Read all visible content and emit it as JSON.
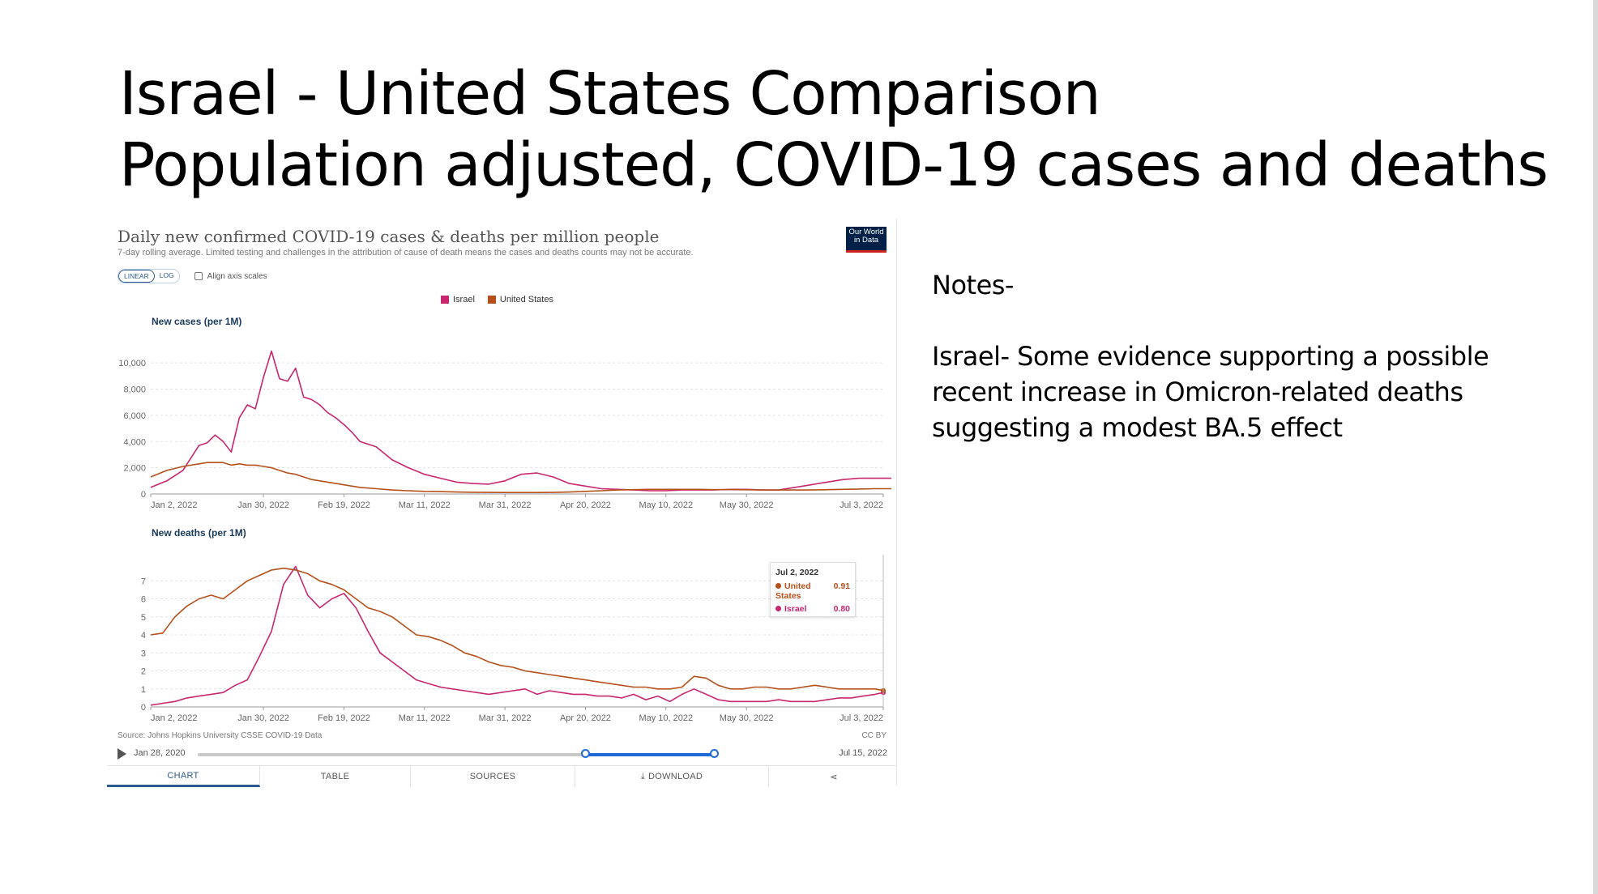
{
  "slide": {
    "title_line1": "Israel - United States Comparison",
    "title_line2": "Population adjusted, COVID-19 cases and deaths"
  },
  "notes": {
    "heading": "Notes-",
    "body": "Israel- Some evidence supporting a possible recent increase in Omicron-related deaths suggesting a modest BA.5 effect"
  },
  "owid": {
    "title": "Daily new confirmed COVID-19 cases & deaths per million people",
    "subtitle": "7-day rolling average. Limited testing and challenges in the attribution of cause of death means the cases and deaths counts may not be accurate.",
    "logo_line1": "Our World",
    "logo_line2": "in Data",
    "linear_label": "LINEAR",
    "log_label": "LOG",
    "align_label": "Align axis scales",
    "source": "Source: Johns Hopkins University CSSE COVID-19 Data",
    "license": "CC BY",
    "timeline_start": "Jan 28, 2020",
    "timeline_end": "Jul 15, 2022",
    "tabs": [
      "CHART",
      "TABLE",
      "SOURCES",
      "DOWNLOAD",
      "share"
    ],
    "tooltip": {
      "date": "Jul 2, 2022",
      "rows": [
        {
          "name": "United States",
          "value": "0.91"
        },
        {
          "name": "Israel",
          "value": "0.80"
        }
      ]
    },
    "colors": {
      "israel": "#c8266f",
      "united_states": "#b5501b",
      "accent": "#2c5a90"
    }
  },
  "chart_data": [
    {
      "type": "line",
      "title": "New cases (per 1M)",
      "xlabel": "",
      "ylabel": "New cases (per 1M)",
      "ylim": [
        0,
        11000
      ],
      "yticks": [
        0,
        2000,
        4000,
        6000,
        8000,
        10000
      ],
      "ytick_labels": [
        "0",
        "2,000",
        "4,000",
        "6,000",
        "8,000",
        "10,000"
      ],
      "x": [
        0,
        4,
        8,
        12,
        14,
        16,
        18,
        20,
        22,
        24,
        26,
        28,
        30,
        32,
        34,
        36,
        38,
        40,
        42,
        44,
        46,
        48,
        50,
        52,
        56,
        60,
        64,
        68,
        72,
        76,
        80,
        84,
        88,
        92,
        96,
        100,
        104,
        108,
        112,
        116,
        120,
        124,
        128,
        132,
        136,
        140,
        144,
        148,
        152,
        156,
        160,
        164,
        168,
        172,
        176,
        180,
        184
      ],
      "x_tick_labels": [
        "Jan 2, 2022",
        "Jan 30, 2022",
        "Feb 19, 2022",
        "Mar 11, 2022",
        "Mar 31, 2022",
        "Apr 20, 2022",
        "May 10, 2022",
        "May 30, 2022",
        "Jul 3, 2022"
      ],
      "x_tick_positions": [
        0,
        28,
        48,
        68,
        88,
        108,
        128,
        148,
        182
      ],
      "series": [
        {
          "name": "Israel",
          "values": [
            500,
            1000,
            1800,
            3700,
            3900,
            4500,
            4000,
            3200,
            5800,
            6800,
            6500,
            8900,
            10900,
            8800,
            8600,
            9600,
            7400,
            7200,
            6800,
            6200,
            5800,
            5300,
            4700,
            4000,
            3600,
            2600,
            2000,
            1500,
            1200,
            900,
            800,
            750,
            1000,
            1500,
            1600,
            1300,
            800,
            600,
            400,
            350,
            300,
            250,
            250,
            300,
            300,
            300,
            350,
            350,
            300,
            300,
            500,
            700,
            900,
            1100,
            1200,
            1200,
            1200
          ]
        },
        {
          "name": "United States",
          "values": [
            1300,
            1800,
            2100,
            2300,
            2400,
            2400,
            2400,
            2200,
            2300,
            2200,
            2200,
            2100,
            2000,
            1800,
            1600,
            1500,
            1300,
            1100,
            1000,
            900,
            800,
            700,
            600,
            500,
            400,
            300,
            250,
            200,
            180,
            150,
            130,
            120,
            110,
            110,
            110,
            120,
            150,
            200,
            250,
            300,
            330,
            350,
            350,
            350,
            350,
            330,
            330,
            320,
            300,
            300,
            300,
            300,
            330,
            350,
            380,
            400,
            400
          ]
        }
      ]
    },
    {
      "type": "line",
      "title": "New deaths (per 1M)",
      "xlabel": "",
      "ylabel": "New deaths (per 1M)",
      "ylim": [
        0,
        8
      ],
      "yticks": [
        0,
        1,
        2,
        3,
        4,
        5,
        6,
        7
      ],
      "ytick_labels": [
        "0",
        "1",
        "2",
        "3",
        "4",
        "5",
        "6",
        "7"
      ],
      "x": [
        0,
        3,
        6,
        9,
        12,
        15,
        18,
        21,
        24,
        27,
        30,
        33,
        36,
        39,
        42,
        45,
        48,
        51,
        54,
        57,
        60,
        63,
        66,
        69,
        72,
        75,
        78,
        81,
        84,
        87,
        90,
        93,
        96,
        99,
        102,
        105,
        108,
        111,
        114,
        117,
        120,
        123,
        126,
        129,
        132,
        135,
        138,
        141,
        144,
        147,
        150,
        153,
        156,
        159,
        162,
        165,
        168,
        171,
        174,
        177,
        180,
        182
      ],
      "x_tick_labels": [
        "Jan 2, 2022",
        "Jan 30, 2022",
        "Feb 19, 2022",
        "Mar 11, 2022",
        "Mar 31, 2022",
        "Apr 20, 2022",
        "May 10, 2022",
        "May 30, 2022",
        "Jul 3, 2022"
      ],
      "x_tick_positions": [
        0,
        28,
        48,
        68,
        88,
        108,
        128,
        148,
        182
      ],
      "series": [
        {
          "name": "Israel",
          "values": [
            0.1,
            0.2,
            0.3,
            0.5,
            0.6,
            0.7,
            0.8,
            1.2,
            1.5,
            2.8,
            4.2,
            6.8,
            7.8,
            6.2,
            5.5,
            6.0,
            6.3,
            5.5,
            4.2,
            3.0,
            2.5,
            2.0,
            1.5,
            1.3,
            1.1,
            1.0,
            0.9,
            0.8,
            0.7,
            0.8,
            0.9,
            1.0,
            0.7,
            0.9,
            0.8,
            0.7,
            0.7,
            0.6,
            0.6,
            0.5,
            0.7,
            0.4,
            0.6,
            0.3,
            0.7,
            1.0,
            0.7,
            0.4,
            0.3,
            0.3,
            0.3,
            0.3,
            0.4,
            0.3,
            0.3,
            0.3,
            0.4,
            0.5,
            0.5,
            0.6,
            0.7,
            0.8
          ]
        },
        {
          "name": "United States",
          "values": [
            4.0,
            4.1,
            5.0,
            5.6,
            6.0,
            6.2,
            6.0,
            6.5,
            7.0,
            7.3,
            7.6,
            7.7,
            7.6,
            7.4,
            7.0,
            6.8,
            6.5,
            6.0,
            5.5,
            5.3,
            5.0,
            4.5,
            4.0,
            3.9,
            3.7,
            3.4,
            3.0,
            2.8,
            2.5,
            2.3,
            2.2,
            2.0,
            1.9,
            1.8,
            1.7,
            1.6,
            1.5,
            1.4,
            1.3,
            1.2,
            1.1,
            1.1,
            1.0,
            1.0,
            1.1,
            1.7,
            1.6,
            1.2,
            1.0,
            1.0,
            1.1,
            1.1,
            1.0,
            1.0,
            1.1,
            1.2,
            1.1,
            1.0,
            1.0,
            1.0,
            1.0,
            0.91
          ]
        }
      ]
    }
  ]
}
